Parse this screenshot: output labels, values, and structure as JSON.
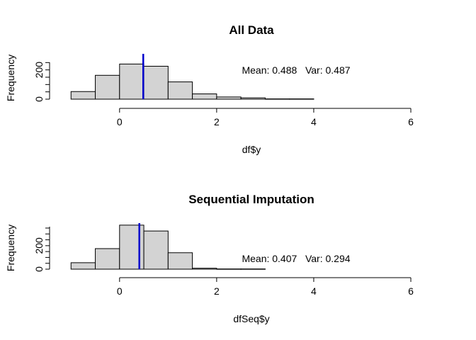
{
  "chart_data": [
    {
      "type": "bar",
      "title": "All Data",
      "xlabel": "df$y",
      "ylabel": "Frequency",
      "xlim": [
        -1.5,
        6
      ],
      "ylim": [
        0,
        300
      ],
      "x_ticks": [
        "0",
        "2",
        "4",
        "6"
      ],
      "y_ticks": [
        "0",
        "200"
      ],
      "bins": [
        {
          "from": -1.0,
          "to": -0.5,
          "count": 52
        },
        {
          "from": -0.5,
          "to": 0.0,
          "count": 163
        },
        {
          "from": 0.0,
          "to": 0.5,
          "count": 240
        },
        {
          "from": 0.5,
          "to": 1.0,
          "count": 225
        },
        {
          "from": 1.0,
          "to": 1.5,
          "count": 118
        },
        {
          "from": 1.5,
          "to": 2.0,
          "count": 36
        },
        {
          "from": 2.0,
          "to": 2.5,
          "count": 15
        },
        {
          "from": 2.5,
          "to": 3.0,
          "count": 9
        },
        {
          "from": 3.0,
          "to": 3.5,
          "count": 2
        },
        {
          "from": 3.5,
          "to": 4.0,
          "count": 2
        }
      ],
      "mean_line": 0.488,
      "line_color": "#0000cc",
      "bar_color": "#d3d3d3",
      "stats_text": "Mean: 0.488   Var: 0.487"
    },
    {
      "type": "bar",
      "title": "Sequential Imputation",
      "xlabel": "dfSeq$y",
      "ylabel": "Frequency",
      "xlim": [
        -1.5,
        6
      ],
      "ylim": [
        0,
        380
      ],
      "x_ticks": [
        "0",
        "2",
        "4",
        "6"
      ],
      "y_ticks": [
        "0",
        "200"
      ],
      "bins": [
        {
          "from": -1.0,
          "to": -0.5,
          "count": 55
        },
        {
          "from": -0.5,
          "to": 0.0,
          "count": 175
        },
        {
          "from": 0.0,
          "to": 0.5,
          "count": 375
        },
        {
          "from": 0.5,
          "to": 1.0,
          "count": 325
        },
        {
          "from": 1.0,
          "to": 1.5,
          "count": 140
        },
        {
          "from": 1.5,
          "to": 2.0,
          "count": 8
        },
        {
          "from": 2.0,
          "to": 2.5,
          "count": 2
        },
        {
          "from": 2.5,
          "to": 3.0,
          "count": 2
        }
      ],
      "mean_line": 0.407,
      "line_color": "#0000cc",
      "bar_color": "#d3d3d3",
      "stats_text": "Mean: 0.407   Var: 0.294"
    }
  ]
}
